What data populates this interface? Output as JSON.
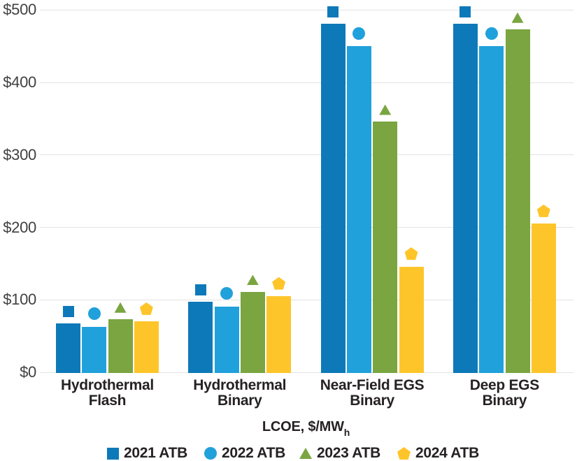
{
  "chart_data": {
    "type": "bar",
    "title": "",
    "xlabel_main": "LCOE, $/MW",
    "xlabel_sub": "h",
    "ylabel": "",
    "ylim": [
      0,
      500
    ],
    "grid": "horizontal",
    "legend_position": "bottom",
    "yticks": [
      {
        "value": 0,
        "label": "$0"
      },
      {
        "value": 100,
        "label": "$100"
      },
      {
        "value": 200,
        "label": "$200"
      },
      {
        "value": 300,
        "label": "$300"
      },
      {
        "value": 400,
        "label": "$400"
      },
      {
        "value": 500,
        "label": "$500"
      }
    ],
    "categories": [
      "Hydrothermal Flash",
      "Hydrothermal Binary",
      "Near-Field EGS Binary",
      "Deep EGS Binary"
    ],
    "category_lines": [
      [
        "Hydrothermal",
        "Flash"
      ],
      [
        "Hydrothermal",
        "Binary"
      ],
      [
        "Near-Field EGS",
        "Binary"
      ],
      [
        "Deep EGS",
        "Binary"
      ]
    ],
    "series": [
      {
        "name": "2021 ATB",
        "marker": "square",
        "color": "#0e79b9",
        "values": [
          67,
          97,
          481,
          481
        ],
        "marker_values": [
          85,
          115,
          501,
          501
        ]
      },
      {
        "name": "2022 ATB",
        "marker": "circle",
        "color": "#21a1db",
        "values": [
          63,
          91,
          450,
          450
        ],
        "marker_values": [
          79,
          106,
          467,
          467
        ]
      },
      {
        "name": "2023 ATB",
        "marker": "triangle",
        "color": "#7aa540",
        "values": [
          73,
          111,
          346,
          473
        ],
        "marker_values": [
          92,
          126,
          363,
          490
        ]
      },
      {
        "name": "2024 ATB",
        "marker": "pentagon",
        "color": "#fec52b",
        "values": [
          70,
          105,
          146,
          205
        ],
        "marker_values": [
          87,
          121,
          164,
          222
        ]
      }
    ],
    "colors": {
      "gridline": "#e3e3e3",
      "tick_text": "#414042",
      "label_text": "#262223"
    }
  }
}
